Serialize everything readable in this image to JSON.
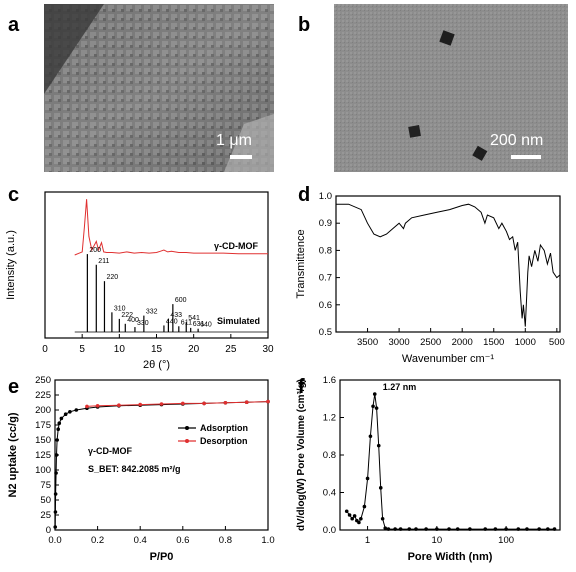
{
  "panels": {
    "a": {
      "letter": "a",
      "scalebar": "1 μm"
    },
    "b": {
      "letter": "b",
      "scalebar": "200 nm"
    },
    "c": {
      "letter": "c"
    },
    "d": {
      "letter": "d"
    },
    "e": {
      "letter": "e"
    },
    "f": {
      "letter": "f"
    }
  },
  "chart_data": [
    {
      "panel": "c",
      "type": "line",
      "xlabel": "2θ (°)",
      "ylabel": "Intensity (a.u.)",
      "xlim": [
        0,
        30
      ],
      "xticks": [
        0,
        5,
        10,
        15,
        20,
        25,
        30
      ],
      "series": [
        {
          "name": "γ-CD-MOF",
          "color": "#e03030",
          "x": [
            4,
            5.0,
            5.3,
            5.6,
            5.9,
            6.3,
            6.9,
            7.2,
            7.6,
            7.9,
            8.3,
            9,
            10,
            11,
            12,
            13,
            14,
            15,
            15.5,
            16,
            16.5,
            17,
            18,
            19,
            20,
            22,
            24,
            26,
            28,
            30
          ],
          "y": [
            0.0,
            0.05,
            0.45,
            0.9,
            0.3,
            0.08,
            0.22,
            0.08,
            0.2,
            0.05,
            0.04,
            0.04,
            0.03,
            0.05,
            0.03,
            0.04,
            0.03,
            0.04,
            0.06,
            0.08,
            0.05,
            0.06,
            0.04,
            0.04,
            0.03,
            0.03,
            0.03,
            0.02,
            0.02,
            0.02
          ]
        },
        {
          "name": "Simulated",
          "color": "#000000",
          "peaks": [
            {
              "x": 5.7,
              "y": 0.95,
              "label": "200"
            },
            {
              "x": 6.9,
              "y": 0.82,
              "label": "211"
            },
            {
              "x": 8.0,
              "y": 0.62,
              "label": "220"
            },
            {
              "x": 9.0,
              "y": 0.24,
              "label": "310"
            },
            {
              "x": 10.0,
              "y": 0.16,
              "label": "222"
            },
            {
              "x": 10.8,
              "y": 0.1,
              "label": "400"
            },
            {
              "x": 12.1,
              "y": 0.06,
              "label": "330"
            },
            {
              "x": 13.3,
              "y": 0.2,
              "label": "332"
            },
            {
              "x": 16.0,
              "y": 0.08,
              "label": "440"
            },
            {
              "x": 16.6,
              "y": 0.16,
              "label": "433"
            },
            {
              "x": 17.2,
              "y": 0.34,
              "label": "600"
            },
            {
              "x": 18.0,
              "y": 0.07,
              "label": "611"
            },
            {
              "x": 19.0,
              "y": 0.12,
              "label": "541"
            },
            {
              "x": 19.6,
              "y": 0.05,
              "label": "631"
            },
            {
              "x": 20.6,
              "y": 0.04,
              "label": "640"
            }
          ]
        }
      ]
    },
    {
      "panel": "d",
      "type": "line",
      "xlabel": "Wavenumber cm⁻¹",
      "ylabel": "Transmittence",
      "xlim": [
        4000,
        450
      ],
      "ylim": [
        0.5,
        1.0
      ],
      "xticks": [
        3500,
        3000,
        2500,
        2000,
        1500,
        1000,
        500
      ],
      "yticks": [
        0.5,
        0.6,
        0.7,
        0.8,
        0.9,
        1.0
      ],
      "series": [
        {
          "name": "",
          "color": "#000000",
          "x": [
            4000,
            3800,
            3600,
            3500,
            3400,
            3300,
            3200,
            3100,
            3000,
            2930,
            2900,
            2800,
            2600,
            2400,
            2200,
            2000,
            1900,
            1800,
            1700,
            1640,
            1600,
            1500,
            1420,
            1370,
            1300,
            1250,
            1200,
            1160,
            1120,
            1080,
            1050,
            1030,
            1000,
            960,
            940,
            900,
            850,
            800,
            760,
            700,
            650,
            600,
            560,
            500,
            450
          ],
          "y": [
            0.97,
            0.97,
            0.95,
            0.9,
            0.86,
            0.85,
            0.86,
            0.88,
            0.9,
            0.88,
            0.9,
            0.92,
            0.93,
            0.94,
            0.95,
            0.965,
            0.97,
            0.96,
            0.94,
            0.9,
            0.93,
            0.92,
            0.88,
            0.9,
            0.87,
            0.84,
            0.85,
            0.8,
            0.83,
            0.65,
            0.55,
            0.6,
            0.52,
            0.72,
            0.78,
            0.74,
            0.8,
            0.76,
            0.82,
            0.8,
            0.75,
            0.79,
            0.72,
            0.7,
            0.71
          ]
        }
      ]
    },
    {
      "panel": "e",
      "type": "line",
      "title": "γ-CD-MOF",
      "annotation": "S_BET: 842.2085 m²/g",
      "xlabel": "P/P0",
      "ylabel": "N2 uptake (cc/g)",
      "xlim": [
        0,
        1.0
      ],
      "ylim": [
        0,
        250
      ],
      "xticks": [
        0.0,
        0.2,
        0.4,
        0.6,
        0.8,
        1.0
      ],
      "yticks": [
        0,
        25,
        50,
        75,
        100,
        125,
        150,
        175,
        200,
        225,
        250
      ],
      "series": [
        {
          "name": "Adsorption",
          "color": "#000000",
          "x": [
            0.001,
            0.002,
            0.003,
            0.005,
            0.007,
            0.01,
            0.015,
            0.02,
            0.03,
            0.05,
            0.07,
            0.1,
            0.15,
            0.2,
            0.3,
            0.4,
            0.5,
            0.6,
            0.7,
            0.8,
            0.9,
            1.0
          ],
          "y": [
            5,
            30,
            60,
            95,
            125,
            150,
            168,
            178,
            186,
            193,
            197,
            200,
            203,
            205,
            207,
            208,
            209,
            210,
            211,
            212,
            213,
            214
          ]
        },
        {
          "name": "Desorption",
          "color": "#e03030",
          "x": [
            0.15,
            0.2,
            0.3,
            0.4,
            0.5,
            0.6,
            0.7,
            0.8,
            0.9,
            1.0
          ],
          "y": [
            206,
            207,
            208,
            209,
            210,
            211,
            211,
            212,
            213,
            214
          ]
        }
      ]
    },
    {
      "panel": "f",
      "type": "line",
      "annotation": "1.27 nm",
      "xlabel": "Pore Width (nm)",
      "ylabel": "dV/dlog(W) Pore Volume (cm³/g)",
      "xscale": "log",
      "xlim": [
        0.4,
        600
      ],
      "ylim": [
        0,
        1.6
      ],
      "xticks": [
        1,
        10,
        100
      ],
      "yticks": [
        0.0,
        0.4,
        0.8,
        1.2,
        1.6
      ],
      "series": [
        {
          "name": "",
          "color": "#000000",
          "x": [
            0.5,
            0.55,
            0.6,
            0.65,
            0.7,
            0.75,
            0.8,
            0.9,
            1.0,
            1.1,
            1.2,
            1.27,
            1.35,
            1.45,
            1.55,
            1.65,
            1.8,
            2,
            2.5,
            3,
            4,
            5,
            7,
            10,
            15,
            20,
            30,
            50,
            70,
            100,
            150,
            200,
            300,
            400,
            500
          ],
          "y": [
            0.2,
            0.16,
            0.12,
            0.15,
            0.1,
            0.08,
            0.12,
            0.25,
            0.55,
            1.0,
            1.32,
            1.45,
            1.3,
            0.9,
            0.45,
            0.12,
            0.02,
            0.01,
            0.01,
            0.01,
            0.01,
            0.01,
            0.01,
            0.01,
            0.01,
            0.01,
            0.01,
            0.01,
            0.01,
            0.01,
            0.01,
            0.01,
            0.01,
            0.01,
            0.01
          ]
        }
      ]
    }
  ]
}
